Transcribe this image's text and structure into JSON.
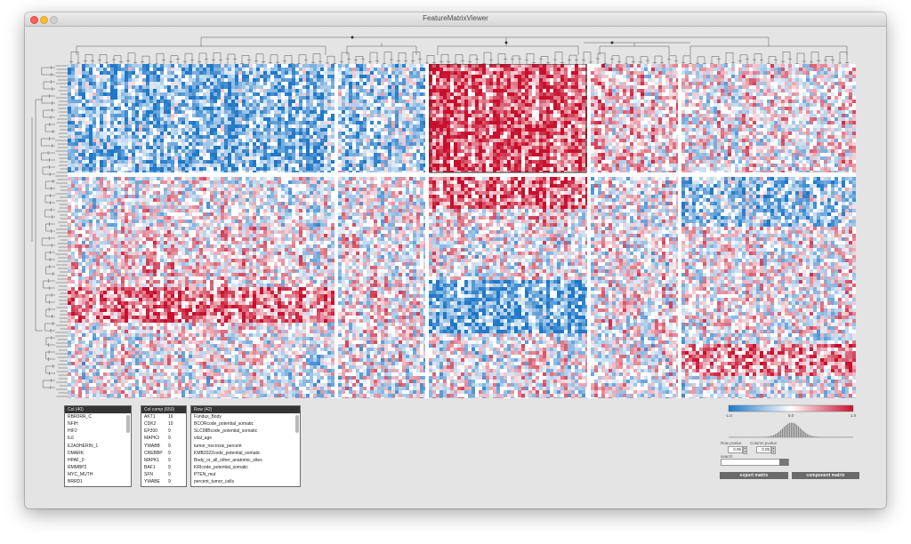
{
  "window": {
    "title": "FeatureMatrixViewer"
  },
  "colors": {
    "blue": "#1f78c8",
    "red": "#c8102e",
    "white": "#ffffff",
    "highlight": "#333333"
  },
  "legend": {
    "min": "-1.0",
    "mid": "0.0",
    "max": "1.0"
  },
  "col_panel": {
    "header": "Col (40)",
    "items": [
      "RBR0RR_C",
      "NFIH",
      "HIF2",
      "IL6",
      "E2ADHERIN_1",
      "DMARK",
      "HPAF_0",
      "RMMBP2",
      "MYC_MUTH",
      "BRRD1",
      "ATM"
    ]
  },
  "colcomp_panel": {
    "header": "Col comp (650)",
    "items": [
      {
        "name": "AKT1",
        "count": "16"
      },
      {
        "name": "CDK2",
        "count": "10"
      },
      {
        "name": "EP300",
        "count": "9"
      },
      {
        "name": "MAPK3",
        "count": "9"
      },
      {
        "name": "YWABB",
        "count": "9"
      },
      {
        "name": "CREBBP",
        "count": "9"
      },
      {
        "name": "MAPK1",
        "count": "9"
      },
      {
        "name": "BAF1",
        "count": "9"
      },
      {
        "name": "SFN",
        "count": "9"
      },
      {
        "name": "YWABE",
        "count": "9"
      },
      {
        "name": "YWABZ",
        "count": "9"
      }
    ]
  },
  "row_panel": {
    "header": "Row (42)",
    "items": [
      "Fundus_Body",
      "BCORcode_potential_somatic",
      "SLC08Bcode_potential_somatic",
      "vital_age",
      "tumor_necrosis_percent",
      "KMB2022code_potential_somatic",
      "Body_or_all_other_anatomic_sites",
      "KRIcode_potential_somatic",
      "PTEN_mut",
      "percent_tumor_cells",
      "RPC_mut"
    ]
  },
  "controls": {
    "row_pvalue_label": "Row pvalue",
    "row_pvalue": "0.05",
    "col_pvalue_label": "Column pvalue",
    "col_pvalue": "0.05",
    "search_label": "search",
    "search_value": "",
    "export_label": "export matrix",
    "component_label": "component matrix"
  }
}
